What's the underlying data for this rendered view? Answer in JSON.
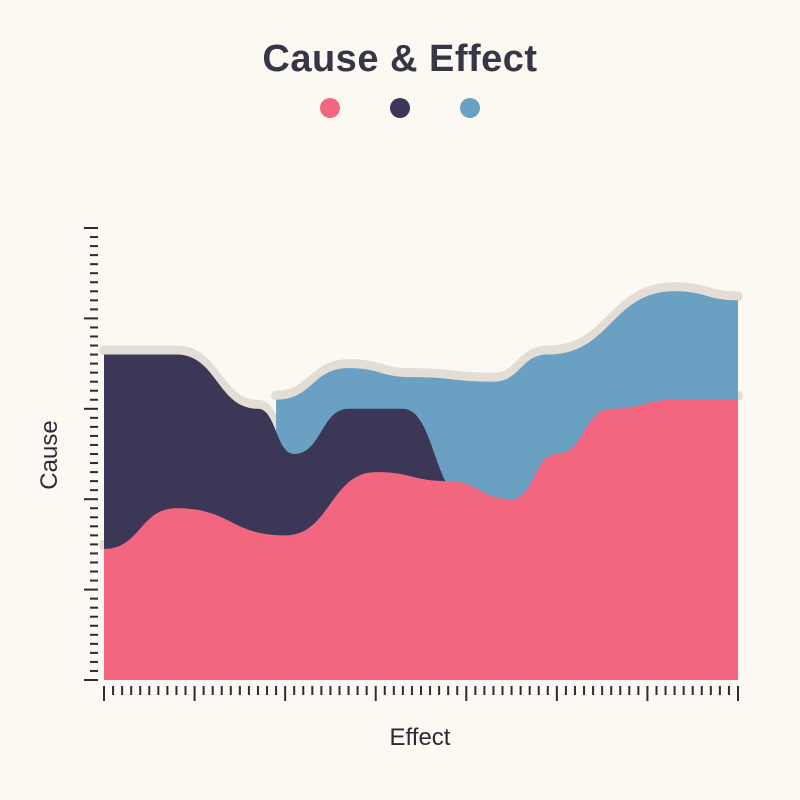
{
  "colors": {
    "background": "#fcf8f2",
    "pink": "#f2677f",
    "navy": "#3c3756",
    "blue": "#6aa0c2",
    "shadow": "#e4ddd6",
    "axis": "#2b2b35"
  },
  "chart_data": {
    "type": "area",
    "title": "Cause & Effect",
    "xlabel": "Effect",
    "ylabel": "Cause",
    "xlim": [
      0,
      70
    ],
    "ylim": [
      0,
      50
    ],
    "grid": false,
    "legend_position": "top-center",
    "series": [
      {
        "color": "#f2677f",
        "x": [
          0,
          8,
          20,
          30,
          38,
          45,
          50,
          56,
          63,
          70
        ],
        "values": [
          14.5,
          19,
          16,
          23,
          22,
          20,
          25,
          30,
          31,
          31
        ]
      },
      {
        "color": "#3c3756",
        "x": [
          0,
          8,
          17,
          21,
          27,
          33,
          40,
          46,
          49
        ],
        "values": [
          36,
          36,
          30,
          25,
          30,
          30,
          20,
          20,
          20
        ]
      },
      {
        "color": "#6aa0c2",
        "x": [
          19,
          27,
          34,
          43,
          49,
          63,
          70
        ],
        "values": [
          31,
          34.5,
          33.5,
          33,
          36,
          43,
          42
        ]
      }
    ]
  }
}
